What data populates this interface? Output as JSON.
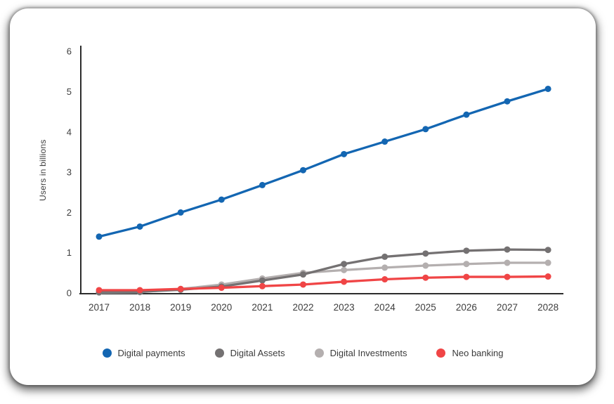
{
  "chart_data": {
    "type": "line",
    "title": "",
    "xlabel": "",
    "ylabel": "Users in billions",
    "x": [
      "2017",
      "2018",
      "2019",
      "2020",
      "2021",
      "2022",
      "2023",
      "2024",
      "2025",
      "2026",
      "2027",
      "2028"
    ],
    "ylim": [
      0,
      6
    ],
    "yticks": [
      "0",
      "1",
      "2",
      "3",
      "4",
      "5",
      "6"
    ],
    "grid": false,
    "legend_position": "bottom",
    "series": [
      {
        "name": "Digital payments",
        "color": "#1366b2",
        "values": [
          1.4,
          1.65,
          2.0,
          2.32,
          2.68,
          3.05,
          3.45,
          3.76,
          4.07,
          4.43,
          4.76,
          5.07
        ]
      },
      {
        "name": "Digital Assets",
        "color": "#747172",
        "values": [
          0.02,
          0.03,
          0.08,
          0.16,
          0.31,
          0.46,
          0.72,
          0.9,
          0.98,
          1.05,
          1.08,
          1.07
        ]
      },
      {
        "name": "Digital Investments",
        "color": "#b4afaf",
        "values": [
          0.01,
          0.02,
          0.1,
          0.21,
          0.36,
          0.5,
          0.57,
          0.63,
          0.68,
          0.72,
          0.75,
          0.75
        ]
      },
      {
        "name": "Neo banking",
        "color": "#f04546",
        "values": [
          0.07,
          0.07,
          0.1,
          0.13,
          0.17,
          0.21,
          0.28,
          0.34,
          0.38,
          0.4,
          0.4,
          0.41
        ]
      }
    ],
    "axis_color": "#2c2c2c",
    "tick_text_color": "#3d3d3d"
  }
}
